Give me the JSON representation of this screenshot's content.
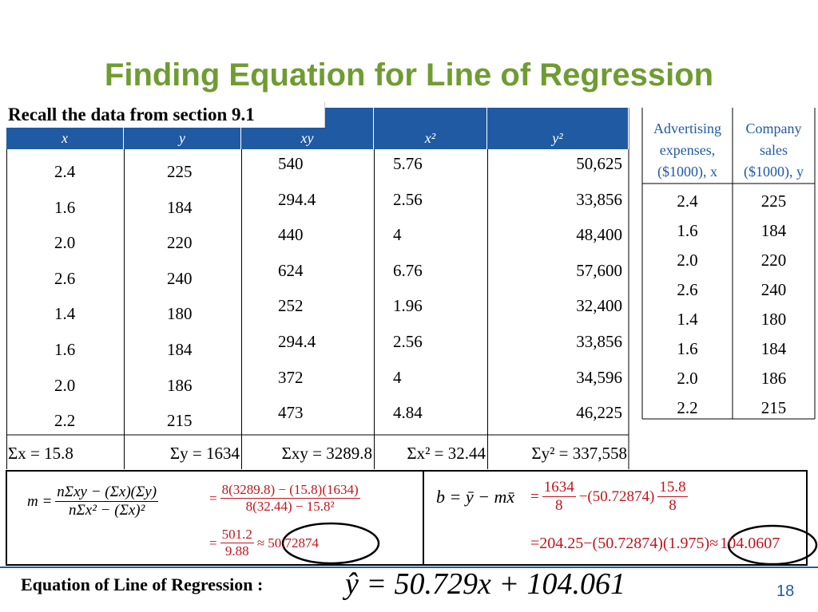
{
  "title": "Finding Equation for Line of Regression",
  "subtitle": "Recall the data from section 9.1",
  "main_table": {
    "headers": [
      "x",
      "y",
      "xy",
      "x²",
      "y²"
    ],
    "rows": [
      [
        "2.4",
        "225",
        "540",
        "5.76",
        "50,625"
      ],
      [
        "1.6",
        "184",
        "294.4",
        "2.56",
        "33,856"
      ],
      [
        "2.0",
        "220",
        "440",
        "4",
        "48,400"
      ],
      [
        "2.6",
        "240",
        "624",
        "6.76",
        "57,600"
      ],
      [
        "1.4",
        "180",
        "252",
        "1.96",
        "32,400"
      ],
      [
        "1.6",
        "184",
        "294.4",
        "2.56",
        "33,856"
      ],
      [
        "2.0",
        "186",
        "372",
        "4",
        "34,596"
      ],
      [
        "2.2",
        "215",
        "473",
        "4.84",
        "46,225"
      ]
    ],
    "sums": [
      "Σx = 15.8",
      "Σy = 1634",
      "Σxy = 3289.8",
      "Σx² = 32.44",
      "Σy² = 337,558"
    ]
  },
  "side_table": {
    "headers": [
      "Advertising expenses, ($1000), x",
      "Company sales ($1000), y"
    ],
    "rows": [
      [
        "2.4",
        "225"
      ],
      [
        "1.6",
        "184"
      ],
      [
        "2.0",
        "220"
      ],
      [
        "2.6",
        "240"
      ],
      [
        "1.4",
        "180"
      ],
      [
        "1.6",
        "184"
      ],
      [
        "2.0",
        "186"
      ],
      [
        "2.2",
        "215"
      ]
    ]
  },
  "m_formula": {
    "lhs": "m =",
    "numerator": "nΣxy − (Σx)(Σy)",
    "denominator": "nΣx² − (Σx)²",
    "step1": {
      "eq": "=",
      "numerator": "8(3289.8) − (15.8)(1634)",
      "denominator": "8(32.44) − 15.8²"
    },
    "step2": {
      "eq": "=",
      "numerator": "501.2",
      "denominator": "9.88",
      "approx": "≈",
      "result": "50.72874"
    }
  },
  "b_formula": {
    "lhs": "b = ȳ − mx̄",
    "step1": {
      "eq": "=",
      "numerator1": "1634",
      "denominator1": "8",
      "middle": "−(50.72874)",
      "numerator2": "15.8",
      "denominator2": "8"
    },
    "step2": {
      "text": "=204.25−(50.72874)(1.975)≈",
      "result": "104.0607"
    }
  },
  "equation": {
    "label": "Equation of Line of Regression :",
    "formula": "ŷ = 50.729x + 104.061"
  },
  "page_number": "18"
}
